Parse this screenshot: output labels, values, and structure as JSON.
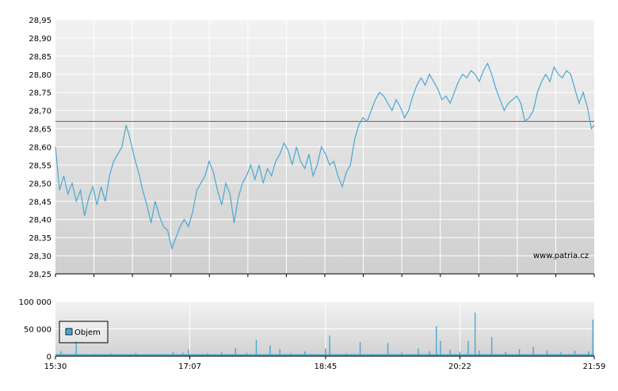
{
  "chart_data": [
    {
      "type": "line",
      "title": "",
      "xlabel": "",
      "ylabel": "",
      "ylim": [
        28.25,
        28.95
      ],
      "yticks": [
        "28,95",
        "28,90",
        "28,85",
        "28,80",
        "28,75",
        "28,70",
        "28,65",
        "28,60",
        "28,55",
        "28,50",
        "28,45",
        "28,40",
        "28,35",
        "28,30",
        "28,25"
      ],
      "watermark": "www.patria.cz",
      "grid": true,
      "reference_line": {
        "value": 28.67,
        "color": "#cc3333"
      },
      "series": [
        {
          "color": "#4aa8d0",
          "points": [
            [
              "15:30",
              28.6
            ],
            [
              "15:33",
              28.48
            ],
            [
              "15:36",
              28.52
            ],
            [
              "15:39",
              28.47
            ],
            [
              "15:42",
              28.5
            ],
            [
              "15:45",
              28.45
            ],
            [
              "15:48",
              28.48
            ],
            [
              "15:51",
              28.41
            ],
            [
              "15:54",
              28.46
            ],
            [
              "15:57",
              28.49
            ],
            [
              "16:00",
              28.44
            ],
            [
              "16:03",
              28.49
            ],
            [
              "16:06",
              28.45
            ],
            [
              "16:09",
              28.52
            ],
            [
              "16:12",
              28.56
            ],
            [
              "16:15",
              28.58
            ],
            [
              "16:18",
              28.6
            ],
            [
              "16:21",
              28.66
            ],
            [
              "16:24",
              28.62
            ],
            [
              "16:27",
              28.57
            ],
            [
              "16:30",
              28.53
            ],
            [
              "16:33",
              28.48
            ],
            [
              "16:36",
              28.44
            ],
            [
              "16:39",
              28.39
            ],
            [
              "16:42",
              28.45
            ],
            [
              "16:45",
              28.41
            ],
            [
              "16:48",
              28.38
            ],
            [
              "16:51",
              28.37
            ],
            [
              "16:54",
              28.32
            ],
            [
              "16:57",
              28.35
            ],
            [
              "17:00",
              28.38
            ],
            [
              "17:03",
              28.4
            ],
            [
              "17:06",
              28.38
            ],
            [
              "17:09",
              28.42
            ],
            [
              "17:12",
              28.48
            ],
            [
              "17:15",
              28.5
            ],
            [
              "17:18",
              28.52
            ],
            [
              "17:21",
              28.56
            ],
            [
              "17:24",
              28.53
            ],
            [
              "17:27",
              28.48
            ],
            [
              "17:30",
              28.44
            ],
            [
              "17:33",
              28.5
            ],
            [
              "17:36",
              28.47
            ],
            [
              "17:39",
              28.39
            ],
            [
              "17:42",
              28.46
            ],
            [
              "17:45",
              28.5
            ],
            [
              "17:48",
              28.52
            ],
            [
              "17:51",
              28.55
            ],
            [
              "17:54",
              28.51
            ],
            [
              "17:57",
              28.55
            ],
            [
              "18:00",
              28.5
            ],
            [
              "18:03",
              28.54
            ],
            [
              "18:06",
              28.52
            ],
            [
              "18:09",
              28.56
            ],
            [
              "18:12",
              28.58
            ],
            [
              "18:15",
              28.61
            ],
            [
              "18:18",
              28.59
            ],
            [
              "18:21",
              28.55
            ],
            [
              "18:24",
              28.6
            ],
            [
              "18:27",
              28.56
            ],
            [
              "18:30",
              28.54
            ],
            [
              "18:33",
              28.58
            ],
            [
              "18:36",
              28.52
            ],
            [
              "18:39",
              28.55
            ],
            [
              "18:42",
              28.6
            ],
            [
              "18:45",
              28.58
            ],
            [
              "18:48",
              28.55
            ],
            [
              "18:51",
              28.56
            ],
            [
              "18:54",
              28.52
            ],
            [
              "18:57",
              28.49
            ],
            [
              "19:00",
              28.53
            ],
            [
              "19:03",
              28.55
            ],
            [
              "19:06",
              28.62
            ],
            [
              "19:09",
              28.66
            ],
            [
              "19:12",
              28.68
            ],
            [
              "19:15",
              28.67
            ],
            [
              "19:18",
              28.7
            ],
            [
              "19:21",
              28.73
            ],
            [
              "19:24",
              28.75
            ],
            [
              "19:27",
              28.74
            ],
            [
              "19:30",
              28.72
            ],
            [
              "19:33",
              28.7
            ],
            [
              "19:36",
              28.73
            ],
            [
              "19:39",
              28.71
            ],
            [
              "19:42",
              28.68
            ],
            [
              "19:45",
              28.7
            ],
            [
              "19:48",
              28.74
            ],
            [
              "19:51",
              28.77
            ],
            [
              "19:54",
              28.79
            ],
            [
              "19:57",
              28.77
            ],
            [
              "20:00",
              28.8
            ],
            [
              "20:03",
              28.78
            ],
            [
              "20:06",
              28.76
            ],
            [
              "20:09",
              28.73
            ],
            [
              "20:12",
              28.74
            ],
            [
              "20:15",
              28.72
            ],
            [
              "20:18",
              28.75
            ],
            [
              "20:21",
              28.78
            ],
            [
              "20:24",
              28.8
            ],
            [
              "20:27",
              28.79
            ],
            [
              "20:30",
              28.81
            ],
            [
              "20:33",
              28.8
            ],
            [
              "20:36",
              28.78
            ],
            [
              "20:39",
              28.81
            ],
            [
              "20:42",
              28.83
            ],
            [
              "20:45",
              28.8
            ],
            [
              "20:48",
              28.76
            ],
            [
              "20:51",
              28.73
            ],
            [
              "20:54",
              28.7
            ],
            [
              "20:57",
              28.72
            ],
            [
              "21:00",
              28.73
            ],
            [
              "21:03",
              28.74
            ],
            [
              "21:06",
              28.72
            ],
            [
              "21:09",
              28.67
            ],
            [
              "21:12",
              28.68
            ],
            [
              "21:15",
              28.7
            ],
            [
              "21:18",
              28.75
            ],
            [
              "21:21",
              28.78
            ],
            [
              "21:24",
              28.8
            ],
            [
              "21:27",
              28.78
            ],
            [
              "21:30",
              28.82
            ],
            [
              "21:33",
              28.8
            ],
            [
              "21:36",
              28.79
            ],
            [
              "21:39",
              28.81
            ],
            [
              "21:42",
              28.8
            ],
            [
              "21:45",
              28.76
            ],
            [
              "21:48",
              28.72
            ],
            [
              "21:51",
              28.75
            ],
            [
              "21:54",
              28.71
            ],
            [
              "21:57",
              28.65
            ],
            [
              "21:59",
              28.66
            ]
          ]
        }
      ]
    },
    {
      "type": "bar",
      "title": "",
      "xlabel": "",
      "ylabel": "",
      "ylim": [
        0,
        100000
      ],
      "yticks": [
        "100 000",
        "50 000",
        "0"
      ],
      "xticks": [
        "15:30",
        "17:07",
        "18:45",
        "20:22",
        "21:59"
      ],
      "legend": {
        "placement": "left",
        "entries": [
          "Objem"
        ]
      },
      "grid": true,
      "series": [
        {
          "name": "Objem",
          "color": "#4aa8d0",
          "points": [
            [
              "15:34",
              9000
            ],
            [
              "15:45",
              28000
            ],
            [
              "15:58",
              4500
            ],
            [
              "16:05",
              3500
            ],
            [
              "16:10",
              5500
            ],
            [
              "16:18",
              4000
            ],
            [
              "16:28",
              6000
            ],
            [
              "16:36",
              3500
            ],
            [
              "16:45",
              3000
            ],
            [
              "16:55",
              8000
            ],
            [
              "17:02",
              6500
            ],
            [
              "17:06",
              12000
            ],
            [
              "17:12",
              4000
            ],
            [
              "17:20",
              5500
            ],
            [
              "17:30",
              7000
            ],
            [
              "17:40",
              15000
            ],
            [
              "17:48",
              6000
            ],
            [
              "17:55",
              30000
            ],
            [
              "18:05",
              20000
            ],
            [
              "18:12",
              13000
            ],
            [
              "18:20",
              6000
            ],
            [
              "18:30",
              8500
            ],
            [
              "18:38",
              4000
            ],
            [
              "18:45",
              14000
            ],
            [
              "18:48",
              38000
            ],
            [
              "19:00",
              5000
            ],
            [
              "19:10",
              26000
            ],
            [
              "19:18",
              4500
            ],
            [
              "19:30",
              24000
            ],
            [
              "19:40",
              7000
            ],
            [
              "19:52",
              14000
            ],
            [
              "20:00",
              9000
            ],
            [
              "20:05",
              55000
            ],
            [
              "20:08",
              28000
            ],
            [
              "20:15",
              12000
            ],
            [
              "20:22",
              8000
            ],
            [
              "20:28",
              28000
            ],
            [
              "20:33",
              80000
            ],
            [
              "20:36",
              10000
            ],
            [
              "20:45",
              35000
            ],
            [
              "20:55",
              8000
            ],
            [
              "21:05",
              13000
            ],
            [
              "21:15",
              17000
            ],
            [
              "21:25",
              11000
            ],
            [
              "21:35",
              7000
            ],
            [
              "21:45",
              10000
            ],
            [
              "21:55",
              9000
            ],
            [
              "21:58",
              67000
            ]
          ]
        }
      ]
    }
  ]
}
